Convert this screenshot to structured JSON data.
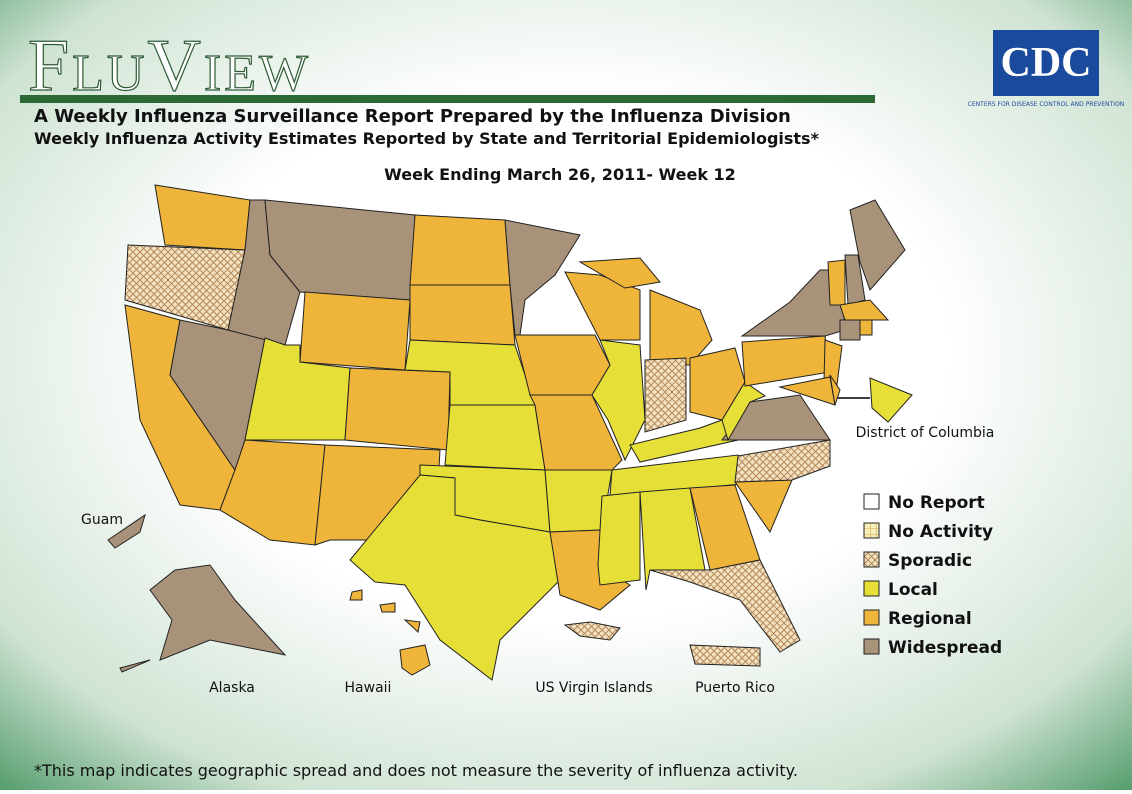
{
  "header": {
    "title": "FluView",
    "subtitle": "A Weekly Influenza Surveillance Report Prepared by the Influenza Division",
    "subtitle2": "Weekly Influenza Activity Estimates Reported by State and Territorial Epidemiologists*",
    "week": "Week Ending March 26, 2011- Week 12"
  },
  "logo": {
    "text": "CDC",
    "tagline": "Centers for Disease Control and Prevention"
  },
  "legend": [
    {
      "label": "No Report",
      "color": "#ffffff"
    },
    {
      "label": "No Activity",
      "color": "#f6eeb8"
    },
    {
      "label": "Sporadic",
      "color": "#ecd3a6"
    },
    {
      "label": "Local",
      "color": "#e6df38"
    },
    {
      "label": "Regional",
      "color": "#efb43a"
    },
    {
      "label": "Widespread",
      "color": "#a8927a"
    }
  ],
  "map": {
    "areas": [
      {
        "level": 4
      },
      {
        "level": 2
      },
      {
        "level": 4
      },
      {
        "level": 5
      },
      {
        "level": 5
      },
      {
        "level": 5
      },
      {
        "level": 4
      },
      {
        "level": 3
      },
      {
        "level": 4
      },
      {
        "level": 4
      },
      {
        "level": 4
      },
      {
        "level": 4
      },
      {
        "level": 4
      },
      {
        "level": 3
      },
      {
        "level": 3
      },
      {
        "level": 3
      },
      {
        "level": 3
      },
      {
        "level": 5
      },
      {
        "level": 4
      },
      {
        "level": 4
      },
      {
        "level": 3
      },
      {
        "level": 4
      },
      {
        "level": 4
      },
      {
        "level": 3
      },
      {
        "level": 4
      },
      {
        "level": 2
      },
      {
        "level": 4
      },
      {
        "level": 3
      },
      {
        "level": 3
      },
      {
        "level": 3
      },
      {
        "level": 3
      },
      {
        "level": 4
      },
      {
        "level": 2
      },
      {
        "level": 4
      },
      {
        "level": 2
      },
      {
        "level": 5
      },
      {
        "level": 3
      },
      {
        "level": 4
      },
      {
        "level": 5
      },
      {
        "level": 4
      },
      {
        "level": 4
      },
      {
        "level": 4
      },
      {
        "level": 4
      },
      {
        "level": 5
      },
      {
        "level": 5
      },
      {
        "level": 4
      },
      {
        "level": 5
      },
      {
        "level": 4
      },
      {
        "level": 3,
        "label": "District of Columbia"
      },
      {
        "level": 5,
        "label": "Alaska"
      },
      {
        "level": 4,
        "label": "Hawaii"
      },
      {
        "level": 5,
        "label": "Guam"
      },
      {
        "level": 2,
        "label": "US Virgin Islands"
      },
      {
        "level": 2,
        "label": "Puerto Rico"
      }
    ]
  },
  "footnote": "*This map indicates geographic spread and does not measure the severity of influenza activity."
}
